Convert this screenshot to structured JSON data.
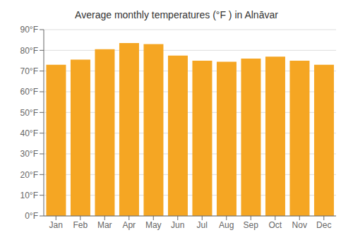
{
  "chart_data": {
    "type": "bar",
    "title": "Average monthly temperatures (°F ) in Alnāvar",
    "categories": [
      "Jan",
      "Feb",
      "Mar",
      "Apr",
      "May",
      "Jun",
      "Jul",
      "Aug",
      "Sep",
      "Oct",
      "Nov",
      "Dec"
    ],
    "values": [
      73,
      75.5,
      80.5,
      83.5,
      83,
      77.5,
      75,
      74.5,
      76,
      77,
      75,
      73
    ],
    "color": "#F5A623",
    "ylim": [
      0,
      90
    ],
    "yticks": [
      {
        "value": 0,
        "label": "0°F"
      },
      {
        "value": 10,
        "label": "10°F"
      },
      {
        "value": 20,
        "label": "20°F"
      },
      {
        "value": 30,
        "label": "30°F"
      },
      {
        "value": 40,
        "label": "40°F"
      },
      {
        "value": 50,
        "label": "50°F"
      },
      {
        "value": 60,
        "label": "60°F"
      },
      {
        "value": 70,
        "label": "70°F"
      },
      {
        "value": 80,
        "label": "80°F"
      },
      {
        "value": 90,
        "label": "90°F"
      }
    ],
    "grid": true
  }
}
